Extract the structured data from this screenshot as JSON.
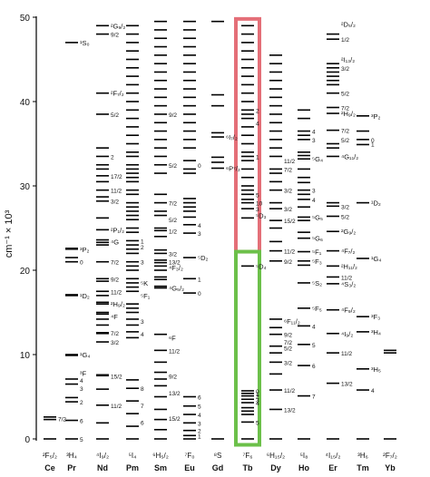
{
  "diagram": {
    "y_axis_label": "cm⁻¹ × 10³",
    "y_ticks": [
      "0",
      "10",
      "20",
      "30",
      "40",
      "50"
    ],
    "colors": {
      "line": "#000000",
      "highlight_upper": "#e46f78",
      "highlight_lower": "#6cc04a"
    },
    "ions": [
      {
        "name": "Ce",
        "ground": "²F₅/₂"
      },
      {
        "name": "Pr",
        "ground": "³H₄"
      },
      {
        "name": "Nd",
        "ground": "⁴I₉/₂"
      },
      {
        "name": "Pm",
        "ground": "⁵I₄"
      },
      {
        "name": "Sm",
        "ground": "⁶H₅/₂"
      },
      {
        "name": "Eu",
        "ground": "⁷F₀"
      },
      {
        "name": "Gd",
        "ground": "⁸S"
      },
      {
        "name": "Tb",
        "ground": "⁷F₆"
      },
      {
        "name": "Dy",
        "ground": "⁶H₁₅/₂"
      },
      {
        "name": "Ho",
        "ground": "⁵I₈"
      },
      {
        "name": "Er",
        "ground": "⁴I₁₅/₂"
      },
      {
        "name": "Tm",
        "ground": "³H₆"
      },
      {
        "name": "Yb",
        "ground": "²F₇/₂"
      }
    ],
    "levels": {
      "Ce": [
        0,
        2.3,
        2.6
      ],
      "Pr": [
        0,
        2.2,
        4.4,
        4.9,
        6.5,
        7.1,
        9.9,
        10.0,
        17.0,
        17.1,
        21.0,
        21.5,
        22.5,
        22.6,
        47.0
      ],
      "Nd": [
        0,
        1.9,
        4.0,
        5.9,
        7.5,
        7.6,
        11.5,
        12.5,
        12.6,
        13.5,
        14.2,
        14.8,
        15.0,
        16.0,
        16.2,
        17.0,
        17.5,
        18.7,
        19.0,
        21.0,
        23.0,
        23.3,
        23.6,
        24.8,
        26.2,
        28.2,
        28.7,
        29.5,
        30.5,
        31.2,
        32.0,
        32.5,
        33.5,
        34.5,
        38.5,
        41.0,
        48.0,
        49.0
      ],
      "Pm": [
        0,
        1.5,
        3.0,
        4.5,
        6.0,
        7.0,
        12.0,
        12.7,
        13.5,
        14.2,
        15.0,
        15.5,
        16.0,
        17.5,
        18.0,
        18.5,
        19.0,
        20.0,
        20.5,
        21.0,
        22.0,
        22.5,
        23.0,
        23.5,
        24.5,
        25.0,
        26.0,
        26.5,
        27.0,
        27.5,
        28.0,
        29.0,
        29.5,
        30.5,
        31.0,
        31.5,
        32.0,
        32.5,
        33.5,
        34.0,
        35.0,
        36.0,
        37.0,
        38.0,
        39.0,
        40.0,
        41.0,
        42.0,
        43.0,
        44.0,
        45.0,
        46.0,
        47.0,
        48.0,
        49.0
      ],
      "Sm": [
        0,
        1.1,
        2.3,
        3.5,
        5.0,
        6.3,
        7.1,
        7.9,
        9.1,
        10.5,
        12.4,
        17.9,
        18.1,
        18.9,
        19.2,
        20.0,
        20.5,
        20.9,
        21.2,
        22.0,
        22.4,
        24.0,
        24.7,
        25.0,
        26.5,
        27.0,
        28.0,
        29.0,
        31.5,
        32.5,
        33.5,
        34.5,
        35.5,
        36.5,
        37.5,
        38.5,
        39.5,
        40.5,
        41.5,
        42.5,
        43.5,
        44.5,
        45.5,
        46.5,
        47.5,
        48.5,
        49.5
      ],
      "Eu": [
        0,
        0.4,
        1.0,
        1.9,
        2.9,
        3.9,
        5.0,
        17.3,
        19.0,
        21.5,
        24.4,
        25.4,
        26.3,
        27.0,
        27.5,
        28.0,
        28.5,
        31.5,
        32.0,
        33.0,
        34.5,
        35.5,
        36.5,
        37.5,
        38.5,
        39.5,
        40.5,
        41.5,
        42.5,
        43.5,
        44.5,
        45.5,
        46.5,
        47.5,
        48.5,
        49.5
      ],
      "Gd": [
        0,
        32.1,
        32.8,
        33.4,
        35.8,
        36.3,
        39.5,
        40.8,
        49.5
      ],
      "Tb": [
        0,
        2.0,
        2.9,
        3.3,
        3.7,
        4.3,
        4.7,
        5.1,
        5.4,
        5.7,
        20.5,
        26.2,
        27.3,
        28.0,
        28.4,
        29.0,
        29.5,
        30.0,
        31.0,
        32.0,
        33.0,
        33.5,
        34.0,
        35.0,
        36.0,
        37.0,
        38.0,
        38.5,
        39.0,
        40.0,
        41.0,
        42.0,
        43.0,
        44.0,
        45.0,
        46.0,
        47.0,
        48.0,
        49.0
      ],
      "Dy": [
        0,
        3.5,
        5.8,
        7.7,
        9.1,
        10.2,
        11.0,
        12.4,
        13.2,
        14.2,
        21.1,
        22.3,
        23.4,
        25.0,
        25.9,
        27.3,
        28.0,
        29.5,
        30.5,
        31.5,
        32.0,
        33.5,
        34.5,
        35.5,
        36.5,
        37.5,
        38.5,
        39.5,
        40.5,
        41.5,
        42.5,
        43.5,
        44.5,
        45.5
      ],
      "Ho": [
        0,
        5.1,
        8.7,
        11.2,
        13.4,
        15.5,
        18.5,
        20.6,
        21.1,
        22.2,
        23.8,
        24.5,
        25.9,
        26.3,
        27.5,
        28.4,
        29.0,
        29.5,
        30.4,
        31.0,
        32.0,
        33.2,
        33.6,
        34.0,
        35.5,
        36.0,
        36.5,
        38.0,
        39.0
      ],
      "Er": [
        0,
        6.6,
        10.2,
        12.5,
        15.3,
        18.4,
        19.2,
        20.5,
        22.3,
        24.6,
        26.4,
        27.6,
        28.0,
        33.5,
        34.5,
        35.0,
        36.6,
        38.6,
        39.3,
        41.0,
        42.0,
        42.5,
        43.0,
        43.5,
        44.0,
        44.5,
        47.4,
        48.0
      ],
      "Tm": [
        0,
        5.8,
        8.3,
        12.7,
        14.5,
        21.4,
        28.0,
        34.9,
        35.5,
        36.5,
        38.3
      ],
      "Yb": [
        0,
        10.2,
        10.5
      ]
    },
    "annotations": [
      {
        "ion": "Ce",
        "level": 2.4,
        "text": "7/2"
      },
      {
        "ion": "Pr",
        "level": 0,
        "text": "5"
      },
      {
        "ion": "Pr",
        "level": 2.2,
        "text": "6"
      },
      {
        "ion": "Pr",
        "level": 6.0,
        "text": "3"
      },
      {
        "ion": "Pr",
        "level": 7.0,
        "text": "4"
      },
      {
        "ion": "Pr",
        "level": 4.4,
        "text": "2"
      },
      {
        "ion": "Pr",
        "level": 10.0,
        "text": "¹G₄",
        "big": true
      },
      {
        "ion": "Pr",
        "level": 7.8,
        "text": "³F",
        "big": true
      },
      {
        "ion": "Pr",
        "level": 17.0,
        "text": "¹D₂",
        "big": true
      },
      {
        "ion": "Pr",
        "level": 21.0,
        "text": "0"
      },
      {
        "ion": "Pr",
        "level": 22.5,
        "text": "³P₂",
        "big": true
      },
      {
        "ion": "Pr",
        "level": 47.0,
        "text": "¹S₀",
        "big": true
      },
      {
        "ion": "Nd",
        "level": 4.0,
        "text": "11/2"
      },
      {
        "ion": "Nd",
        "level": 7.5,
        "text": "15/2"
      },
      {
        "ion": "Nd",
        "level": 11.5,
        "text": "3/2"
      },
      {
        "ion": "Nd",
        "level": 12.6,
        "text": "7/2"
      },
      {
        "ion": "Nd",
        "level": 14.5,
        "text": "⁴F",
        "big": true
      },
      {
        "ion": "Nd",
        "level": 16.0,
        "text": "²H₉/₂",
        "big": true
      },
      {
        "ion": "Nd",
        "level": 17.5,
        "text": "11/2"
      },
      {
        "ion": "Nd",
        "level": 19.0,
        "text": "9/2"
      },
      {
        "ion": "Nd",
        "level": 21.0,
        "text": "7/2"
      },
      {
        "ion": "Nd",
        "level": 23.4,
        "text": "⁴G",
        "big": true
      },
      {
        "ion": "Nd",
        "level": 24.8,
        "text": "²P₁/₂",
        "big": true
      },
      {
        "ion": "Nd",
        "level": 28.2,
        "text": "3/2"
      },
      {
        "ion": "Nd",
        "level": 29.5,
        "text": "11/2"
      },
      {
        "ion": "Nd",
        "level": 31.2,
        "text": "17/2"
      },
      {
        "ion": "Nd",
        "level": 33.5,
        "text": "2"
      },
      {
        "ion": "Nd",
        "level": 38.5,
        "text": "5/2"
      },
      {
        "ion": "Nd",
        "level": 41.0,
        "text": "²F₇/₂",
        "big": true
      },
      {
        "ion": "Nd",
        "level": 48.0,
        "text": "9/2"
      },
      {
        "ion": "Nd",
        "level": 49.0,
        "text": "²G₉/₂",
        "big": true
      },
      {
        "ion": "Pm",
        "level": 6.0,
        "text": "8"
      },
      {
        "ion": "Pm",
        "level": 4.0,
        "text": "7"
      },
      {
        "ion": "Pm",
        "level": 2.0,
        "text": "6"
      },
      {
        "ion": "Pm",
        "level": 12.5,
        "text": "4"
      },
      {
        "ion": "Pm",
        "level": 14.0,
        "text": "3"
      },
      {
        "ion": "Pm",
        "level": 17.0,
        "text": "⁵F₁",
        "big": true
      },
      {
        "ion": "Pm",
        "level": 18.5,
        "text": "⁵K",
        "big": true
      },
      {
        "ion": "Pm",
        "level": 21.0,
        "text": "3"
      },
      {
        "ion": "Pm",
        "level": 22.8,
        "text": "2"
      },
      {
        "ion": "Pm",
        "level": 23.5,
        "text": "1"
      },
      {
        "ion": "Sm",
        "level": 2.5,
        "text": "15/2"
      },
      {
        "ion": "Sm",
        "level": 5.5,
        "text": "13/2"
      },
      {
        "ion": "Sm",
        "level": 7.5,
        "text": "9/2"
      },
      {
        "ion": "Sm",
        "level": 10.5,
        "text": "11/2"
      },
      {
        "ion": "Sm",
        "level": 12.0,
        "text": "⁶F",
        "big": true
      },
      {
        "ion": "Sm",
        "level": 17.9,
        "text": "⁴G₅/₂",
        "big": true
      },
      {
        "ion": "Sm",
        "level": 20.3,
        "text": "⁴F₃/₂",
        "big": true
      },
      {
        "ion": "Sm",
        "level": 21.0,
        "text": "13/2"
      },
      {
        "ion": "Sm",
        "level": 22.0,
        "text": "3/2"
      },
      {
        "ion": "Sm",
        "level": 24.7,
        "text": "1/2"
      },
      {
        "ion": "Sm",
        "level": 26.0,
        "text": "5/2"
      },
      {
        "ion": "Sm",
        "level": 28.0,
        "text": "7/2"
      },
      {
        "ion": "Sm",
        "level": 32.5,
        "text": "5/2"
      },
      {
        "ion": "Sm",
        "level": 38.5,
        "text": "9/2"
      },
      {
        "ion": "Eu",
        "level": 5.0,
        "text": "6"
      },
      {
        "ion": "Eu",
        "level": 3.9,
        "text": "5"
      },
      {
        "ion": "Eu",
        "level": 2.9,
        "text": "4"
      },
      {
        "ion": "Eu",
        "level": 1.9,
        "text": "3"
      },
      {
        "ion": "Eu",
        "level": 1.0,
        "text": "2"
      },
      {
        "ion": "Eu",
        "level": 0.4,
        "text": "1"
      },
      {
        "ion": "Eu",
        "level": 17.3,
        "text": "0"
      },
      {
        "ion": "Eu",
        "level": 19.0,
        "text": "1"
      },
      {
        "ion": "Eu",
        "level": 21.5,
        "text": "⁵D₂",
        "big": true
      },
      {
        "ion": "Eu",
        "level": 24.4,
        "text": "3"
      },
      {
        "ion": "Eu",
        "level": 25.4,
        "text": "4"
      },
      {
        "ion": "Eu",
        "level": 32.5,
        "text": "0"
      },
      {
        "ion": "Gd",
        "level": 32.1,
        "text": "⁶P⁷/₂",
        "big": true
      },
      {
        "ion": "Gd",
        "level": 35.8,
        "text": "⁶I₇/₂",
        "big": true
      },
      {
        "ion": "Tb",
        "level": 26.5,
        "text": "⁵D₃",
        "big": true
      },
      {
        "ion": "Tb",
        "level": 20.5,
        "text": "⁵D₄",
        "big": true
      },
      {
        "ion": "Tb",
        "level": 5.7,
        "text": "0"
      },
      {
        "ion": "Tb",
        "level": 5.4,
        "text": "1"
      },
      {
        "ion": "Tb",
        "level": 5.1,
        "text": "2"
      },
      {
        "ion": "Tb",
        "level": 4.7,
        "text": "3"
      },
      {
        "ion": "Tb",
        "level": 4.3,
        "text": "4"
      },
      {
        "ion": "Tb",
        "level": 2.0,
        "text": "5"
      },
      {
        "ion": "Tb",
        "level": 27.3,
        "text": "3"
      },
      {
        "ion": "Tb",
        "level": 28.0,
        "text": "10"
      },
      {
        "ion": "Tb",
        "level": 29.0,
        "text": "5"
      },
      {
        "ion": "Tb",
        "level": 33.5,
        "text": "1"
      },
      {
        "ion": "Tb",
        "level": 37.5,
        "text": "4"
      },
      {
        "ion": "Tb",
        "level": 39.0,
        "text": "2"
      },
      {
        "ion": "Dy",
        "level": 3.5,
        "text": "13/2"
      },
      {
        "ion": "Dy",
        "level": 5.8,
        "text": "11/2"
      },
      {
        "ion": "Dy",
        "level": 9.1,
        "text": "3/2"
      },
      {
        "ion": "Dy",
        "level": 10.8,
        "text": "5/2"
      },
      {
        "ion": "Dy",
        "level": 11.5,
        "text": "7/2"
      },
      {
        "ion": "Dy",
        "level": 12.4,
        "text": "9/2"
      },
      {
        "ion": "Dy",
        "level": 14.0,
        "text": "⁶F₁₁/₂",
        "big": true
      },
      {
        "ion": "Dy",
        "level": 21.1,
        "text": "9/2"
      },
      {
        "ion": "Dy",
        "level": 22.3,
        "text": "11/2"
      },
      {
        "ion": "Dy",
        "level": 25.9,
        "text": "15/2"
      },
      {
        "ion": "Dy",
        "level": 27.3,
        "text": "3/2"
      },
      {
        "ion": "Dy",
        "level": 29.5,
        "text": "3/2"
      },
      {
        "ion": "Dy",
        "level": 32.0,
        "text": "7/2"
      },
      {
        "ion": "Dy",
        "level": 33.0,
        "text": "11/2"
      },
      {
        "ion": "Ho",
        "level": 5.1,
        "text": "7"
      },
      {
        "ion": "Ho",
        "level": 8.7,
        "text": "6"
      },
      {
        "ion": "Ho",
        "level": 11.2,
        "text": "5"
      },
      {
        "ion": "Ho",
        "level": 13.4,
        "text": "4"
      },
      {
        "ion": "Ho",
        "level": 15.5,
        "text": "⁵F₅",
        "big": true
      },
      {
        "ion": "Ho",
        "level": 18.5,
        "text": "⁵S₂",
        "big": true
      },
      {
        "ion": "Ho",
        "level": 21.1,
        "text": "⁵F₃",
        "big": true
      },
      {
        "ion": "Ho",
        "level": 22.2,
        "text": "⁵F₁",
        "big": true
      },
      {
        "ion": "Ho",
        "level": 23.8,
        "text": "⁵G₆",
        "big": true
      },
      {
        "ion": "Ho",
        "level": 26.3,
        "text": "⁵G₅",
        "big": true
      },
      {
        "ion": "Ho",
        "level": 28.4,
        "text": "4",
        "big": false
      },
      {
        "ion": "Ho",
        "level": 29.5,
        "text": "3"
      },
      {
        "ion": "Ho",
        "level": 33.2,
        "text": "⁵G₄",
        "big": true
      },
      {
        "ion": "Ho",
        "level": 35.5,
        "text": "3"
      },
      {
        "ion": "Ho",
        "level": 36.5,
        "text": "4"
      },
      {
        "ion": "Er",
        "level": 6.6,
        "text": "13/2"
      },
      {
        "ion": "Er",
        "level": 10.2,
        "text": "11/2"
      },
      {
        "ion": "Er",
        "level": 12.5,
        "text": "⁴I₉/₂",
        "big": true
      },
      {
        "ion": "Er",
        "level": 15.3,
        "text": "⁴F₉/₂",
        "big": true
      },
      {
        "ion": "Er",
        "level": 18.4,
        "text": "⁴S₃/₂",
        "big": true
      },
      {
        "ion": "Er",
        "level": 19.2,
        "text": "11/2",
        "big": false
      },
      {
        "ion": "Er",
        "level": 20.5,
        "text": "²H₁₁/₂",
        "big": true
      },
      {
        "ion": "Er",
        "level": 22.3,
        "text": "⁴F₇/₂",
        "big": true
      },
      {
        "ion": "Er",
        "level": 24.6,
        "text": "²G₉/₂",
        "big": true
      },
      {
        "ion": "Er",
        "level": 26.4,
        "text": "5/2"
      },
      {
        "ion": "Er",
        "level": 27.6,
        "text": "3/2"
      },
      {
        "ion": "Er",
        "level": 33.5,
        "text": "⁴G₁₁/₂",
        "big": true
      },
      {
        "ion": "Er",
        "level": 35.5,
        "text": "5/2"
      },
      {
        "ion": "Er",
        "level": 36.6,
        "text": "7/2"
      },
      {
        "ion": "Er",
        "level": 38.6,
        "text": "²H₉/₂",
        "big": true
      },
      {
        "ion": "Er",
        "level": 39.3,
        "text": "7/2"
      },
      {
        "ion": "Er",
        "level": 41.0,
        "text": "5/2"
      },
      {
        "ion": "Er",
        "level": 44.0,
        "text": "3/2"
      },
      {
        "ion": "Er",
        "level": 45.0,
        "text": "²I₁₃/₂",
        "big": true
      },
      {
        "ion": "Er",
        "level": 47.4,
        "text": "1/2"
      },
      {
        "ion": "Er",
        "level": 49.2,
        "text": "²D₅/₂",
        "big": true
      },
      {
        "ion": "Tm",
        "level": 5.8,
        "text": "4"
      },
      {
        "ion": "Tm",
        "level": 8.3,
        "text": "³H₅",
        "big": true
      },
      {
        "ion": "Tm",
        "level": 12.7,
        "text": "³H₄",
        "big": true
      },
      {
        "ion": "Tm",
        "level": 14.5,
        "text": "³F₃",
        "big": true
      },
      {
        "ion": "Tm",
        "level": 21.4,
        "text": "¹G₄",
        "big": true
      },
      {
        "ion": "Tm",
        "level": 28.0,
        "text": "¹D₂",
        "big": true
      },
      {
        "ion": "Tm",
        "level": 35.0,
        "text": "1"
      },
      {
        "ion": "Tm",
        "level": 35.5,
        "text": "0"
      },
      {
        "ion": "Tm",
        "level": 38.3,
        "text": "³P₂",
        "big": true
      }
    ]
  }
}
